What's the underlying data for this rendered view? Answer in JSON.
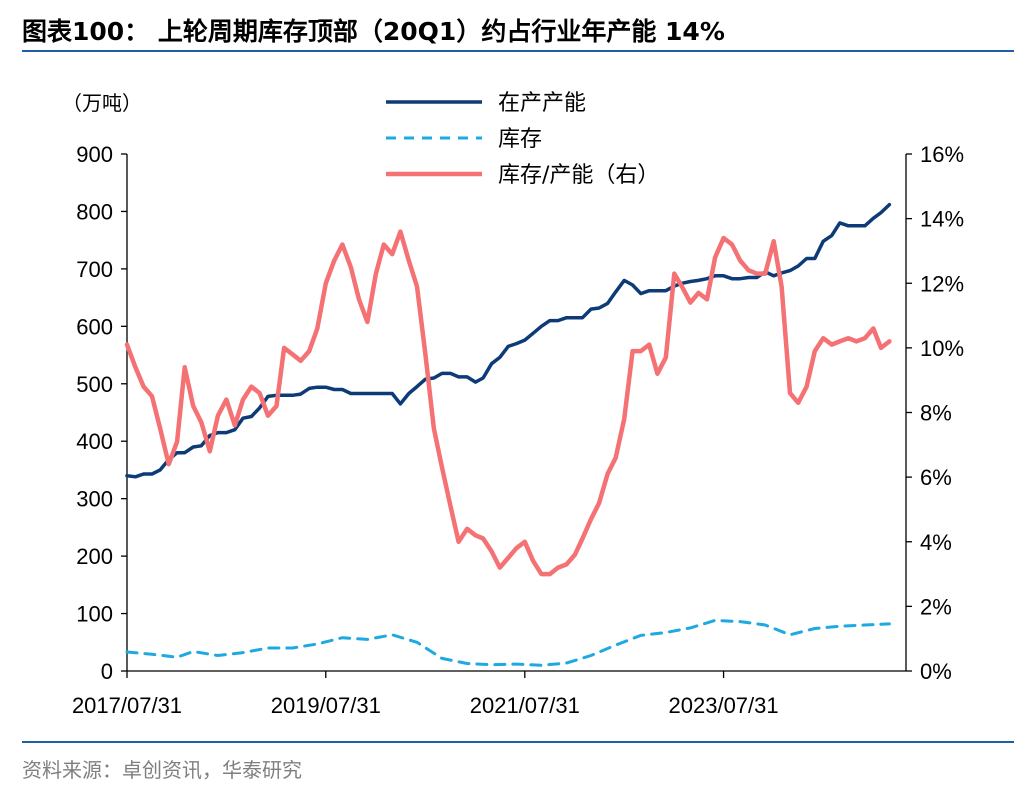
{
  "header": {
    "title": "图表100：  上轮周期库存顶部（20Q1）约占行业年产能 14%"
  },
  "footer": {
    "source": "资料来源：卓创资讯，华泰研究"
  },
  "colors": {
    "capacity": "#0d3b78",
    "inventory": "#1fa9e1",
    "ratio": "#f47174",
    "accent": "#1f5fa8",
    "source": "#7f7f7f"
  },
  "chart_data": {
    "type": "line",
    "left_unit": "（万吨）",
    "ylim_left": [
      0,
      900
    ],
    "yticks_left": [
      "0",
      "100",
      "200",
      "300",
      "400",
      "500",
      "600",
      "700",
      "800",
      "900"
    ],
    "ylim_right": [
      0,
      16
    ],
    "yticks_right": [
      "0%",
      "2%",
      "4%",
      "6%",
      "8%",
      "10%",
      "12%",
      "14%",
      "16%"
    ],
    "xlim": [
      "2017-07-31",
      "2025-05-31"
    ],
    "xticks": [
      "2017/07/31",
      "2019/07/31",
      "2021/07/31",
      "2023/07/31"
    ],
    "legend": [
      "在产产能",
      "库存",
      "库存/产能（右）"
    ],
    "legend_position": "top-center",
    "series": [
      {
        "name": "在产产能",
        "axis": "left",
        "style": "solid",
        "points": [
          [
            "2017-07-31",
            340
          ],
          [
            "2017-08-31",
            338
          ],
          [
            "2017-09-30",
            343
          ],
          [
            "2017-10-31",
            343
          ],
          [
            "2017-11-30",
            350
          ],
          [
            "2017-12-31",
            368
          ],
          [
            "2018-01-31",
            380
          ],
          [
            "2018-02-28",
            380
          ],
          [
            "2018-03-31",
            390
          ],
          [
            "2018-04-30",
            392
          ],
          [
            "2018-05-31",
            410
          ],
          [
            "2018-06-30",
            415
          ],
          [
            "2018-07-31",
            415
          ],
          [
            "2018-08-31",
            420
          ],
          [
            "2018-09-30",
            440
          ],
          [
            "2018-10-31",
            443
          ],
          [
            "2018-11-30",
            458
          ],
          [
            "2018-12-31",
            478
          ],
          [
            "2019-01-31",
            480
          ],
          [
            "2019-02-28",
            480
          ],
          [
            "2019-03-31",
            480
          ],
          [
            "2019-04-30",
            482
          ],
          [
            "2019-05-31",
            492
          ],
          [
            "2019-06-30",
            494
          ],
          [
            "2019-07-31",
            494
          ],
          [
            "2019-08-31",
            490
          ],
          [
            "2019-09-30",
            490
          ],
          [
            "2019-10-31",
            483
          ],
          [
            "2019-11-30",
            483
          ],
          [
            "2019-12-31",
            483
          ],
          [
            "2020-01-31",
            483
          ],
          [
            "2020-02-29",
            483
          ],
          [
            "2020-03-31",
            483
          ],
          [
            "2020-04-30",
            465
          ],
          [
            "2020-05-31",
            483
          ],
          [
            "2020-06-30",
            495
          ],
          [
            "2020-07-31",
            508
          ],
          [
            "2020-08-31",
            510
          ],
          [
            "2020-09-30",
            518
          ],
          [
            "2020-10-31",
            518
          ],
          [
            "2020-11-30",
            512
          ],
          [
            "2020-12-31",
            512
          ],
          [
            "2021-01-31",
            503
          ],
          [
            "2021-02-28",
            510
          ],
          [
            "2021-03-31",
            535
          ],
          [
            "2021-04-30",
            546
          ],
          [
            "2021-05-31",
            565
          ],
          [
            "2021-06-30",
            570
          ],
          [
            "2021-07-31",
            576
          ],
          [
            "2021-08-31",
            588
          ],
          [
            "2021-09-30",
            600
          ],
          [
            "2021-10-31",
            610
          ],
          [
            "2021-11-30",
            610
          ],
          [
            "2021-12-31",
            615
          ],
          [
            "2022-01-31",
            615
          ],
          [
            "2022-02-28",
            615
          ],
          [
            "2022-03-31",
            630
          ],
          [
            "2022-04-30",
            632
          ],
          [
            "2022-05-31",
            640
          ],
          [
            "2022-06-30",
            660
          ],
          [
            "2022-07-31",
            680
          ],
          [
            "2022-08-31",
            672
          ],
          [
            "2022-09-30",
            657
          ],
          [
            "2022-10-31",
            662
          ],
          [
            "2022-11-30",
            662
          ],
          [
            "2022-12-31",
            662
          ],
          [
            "2023-01-31",
            670
          ],
          [
            "2023-02-28",
            675
          ],
          [
            "2023-03-31",
            678
          ],
          [
            "2023-04-30",
            680
          ],
          [
            "2023-05-31",
            683
          ],
          [
            "2023-06-30",
            688
          ],
          [
            "2023-07-31",
            688
          ],
          [
            "2023-08-31",
            683
          ],
          [
            "2023-09-30",
            683
          ],
          [
            "2023-10-31",
            685
          ],
          [
            "2023-11-30",
            685
          ],
          [
            "2023-12-31",
            695
          ],
          [
            "2024-01-31",
            688
          ],
          [
            "2024-02-29",
            693
          ],
          [
            "2024-03-31",
            697
          ],
          [
            "2024-04-30",
            705
          ],
          [
            "2024-05-31",
            718
          ],
          [
            "2024-06-30",
            718
          ],
          [
            "2024-07-31",
            748
          ],
          [
            "2024-08-31",
            758
          ],
          [
            "2024-09-30",
            780
          ],
          [
            "2024-10-31",
            775
          ],
          [
            "2024-11-30",
            775
          ],
          [
            "2024-12-31",
            775
          ],
          [
            "2025-01-31",
            788
          ],
          [
            "2025-02-28",
            798
          ],
          [
            "2025-03-31",
            812
          ]
        ]
      },
      {
        "name": "库存",
        "axis": "left",
        "style": "dashed",
        "points": [
          [
            "2017-07-31",
            33
          ],
          [
            "2017-10-31",
            29
          ],
          [
            "2018-01-31",
            24
          ],
          [
            "2018-03-31",
            34
          ],
          [
            "2018-06-30",
            27
          ],
          [
            "2018-09-30",
            32
          ],
          [
            "2018-12-31",
            40
          ],
          [
            "2019-03-31",
            40
          ],
          [
            "2019-06-30",
            47
          ],
          [
            "2019-09-30",
            58
          ],
          [
            "2019-12-31",
            55
          ],
          [
            "2020-03-31",
            63
          ],
          [
            "2020-06-30",
            50
          ],
          [
            "2020-09-30",
            22
          ],
          [
            "2020-12-31",
            13
          ],
          [
            "2021-03-31",
            11
          ],
          [
            "2021-06-30",
            12
          ],
          [
            "2021-09-30",
            10
          ],
          [
            "2021-12-31",
            14
          ],
          [
            "2022-03-31",
            27
          ],
          [
            "2022-06-30",
            45
          ],
          [
            "2022-09-30",
            62
          ],
          [
            "2022-12-31",
            67
          ],
          [
            "2023-03-31",
            75
          ],
          [
            "2023-06-30",
            88
          ],
          [
            "2023-09-30",
            86
          ],
          [
            "2023-12-31",
            80
          ],
          [
            "2024-03-31",
            63
          ],
          [
            "2024-06-30",
            74
          ],
          [
            "2024-09-30",
            78
          ],
          [
            "2024-12-31",
            80
          ],
          [
            "2025-03-31",
            82
          ]
        ]
      },
      {
        "name": "库存/产能（右）",
        "axis": "right",
        "style": "solid",
        "points": [
          [
            "2017-07-31",
            10.1
          ],
          [
            "2017-08-31",
            9.4
          ],
          [
            "2017-09-30",
            8.8
          ],
          [
            "2017-10-31",
            8.5
          ],
          [
            "2017-11-30",
            7.5
          ],
          [
            "2017-12-31",
            6.4
          ],
          [
            "2018-01-31",
            7.1
          ],
          [
            "2018-02-28",
            9.4
          ],
          [
            "2018-03-31",
            8.2
          ],
          [
            "2018-04-30",
            7.7
          ],
          [
            "2018-05-31",
            6.8
          ],
          [
            "2018-06-30",
            7.9
          ],
          [
            "2018-07-31",
            8.4
          ],
          [
            "2018-08-31",
            7.6
          ],
          [
            "2018-09-30",
            8.4
          ],
          [
            "2018-10-31",
            8.8
          ],
          [
            "2018-11-30",
            8.6
          ],
          [
            "2018-12-31",
            7.9
          ],
          [
            "2019-01-31",
            8.2
          ],
          [
            "2019-02-28",
            10.0
          ],
          [
            "2019-03-31",
            9.8
          ],
          [
            "2019-04-30",
            9.6
          ],
          [
            "2019-05-31",
            9.9
          ],
          [
            "2019-06-30",
            10.6
          ],
          [
            "2019-07-31",
            12.0
          ],
          [
            "2019-08-31",
            12.7
          ],
          [
            "2019-09-30",
            13.2
          ],
          [
            "2019-10-31",
            12.5
          ],
          [
            "2019-11-30",
            11.5
          ],
          [
            "2019-12-31",
            10.8
          ],
          [
            "2020-01-31",
            12.3
          ],
          [
            "2020-02-29",
            13.2
          ],
          [
            "2020-03-31",
            12.9
          ],
          [
            "2020-04-30",
            13.6
          ],
          [
            "2020-05-31",
            12.7
          ],
          [
            "2020-06-30",
            11.9
          ],
          [
            "2020-07-31",
            9.8
          ],
          [
            "2020-08-31",
            7.5
          ],
          [
            "2020-09-30",
            6.3
          ],
          [
            "2020-10-31",
            5.1
          ],
          [
            "2020-11-30",
            4.0
          ],
          [
            "2020-12-31",
            4.4
          ],
          [
            "2021-01-31",
            4.2
          ],
          [
            "2021-02-28",
            4.1
          ],
          [
            "2021-03-31",
            3.7
          ],
          [
            "2021-04-30",
            3.2
          ],
          [
            "2021-05-31",
            3.5
          ],
          [
            "2021-06-30",
            3.8
          ],
          [
            "2021-07-31",
            4.0
          ],
          [
            "2021-08-31",
            3.4
          ],
          [
            "2021-09-30",
            3.0
          ],
          [
            "2021-10-31",
            3.0
          ],
          [
            "2021-11-30",
            3.2
          ],
          [
            "2021-12-31",
            3.3
          ],
          [
            "2022-01-31",
            3.6
          ],
          [
            "2022-02-28",
            4.1
          ],
          [
            "2022-03-31",
            4.7
          ],
          [
            "2022-04-30",
            5.2
          ],
          [
            "2022-05-31",
            6.1
          ],
          [
            "2022-06-30",
            6.6
          ],
          [
            "2022-07-31",
            7.8
          ],
          [
            "2022-08-31",
            9.9
          ],
          [
            "2022-09-30",
            9.9
          ],
          [
            "2022-10-31",
            10.1
          ],
          [
            "2022-11-30",
            9.2
          ],
          [
            "2022-12-31",
            9.7
          ],
          [
            "2023-01-31",
            12.3
          ],
          [
            "2023-02-28",
            11.9
          ],
          [
            "2023-03-31",
            11.4
          ],
          [
            "2023-04-30",
            11.7
          ],
          [
            "2023-05-31",
            11.5
          ],
          [
            "2023-06-30",
            12.8
          ],
          [
            "2023-07-31",
            13.4
          ],
          [
            "2023-08-31",
            13.2
          ],
          [
            "2023-09-30",
            12.7
          ],
          [
            "2023-10-31",
            12.4
          ],
          [
            "2023-11-30",
            12.3
          ],
          [
            "2023-12-31",
            12.3
          ],
          [
            "2024-01-31",
            13.3
          ],
          [
            "2024-02-29",
            11.9
          ],
          [
            "2024-03-31",
            8.6
          ],
          [
            "2024-04-30",
            8.3
          ],
          [
            "2024-05-31",
            8.8
          ],
          [
            "2024-06-30",
            9.9
          ],
          [
            "2024-07-31",
            10.3
          ],
          [
            "2024-08-31",
            10.1
          ],
          [
            "2024-09-30",
            10.2
          ],
          [
            "2024-10-31",
            10.3
          ],
          [
            "2024-11-30",
            10.2
          ],
          [
            "2024-12-31",
            10.3
          ],
          [
            "2025-01-31",
            10.6
          ],
          [
            "2025-02-28",
            10.0
          ],
          [
            "2025-03-31",
            10.2
          ]
        ]
      }
    ]
  }
}
